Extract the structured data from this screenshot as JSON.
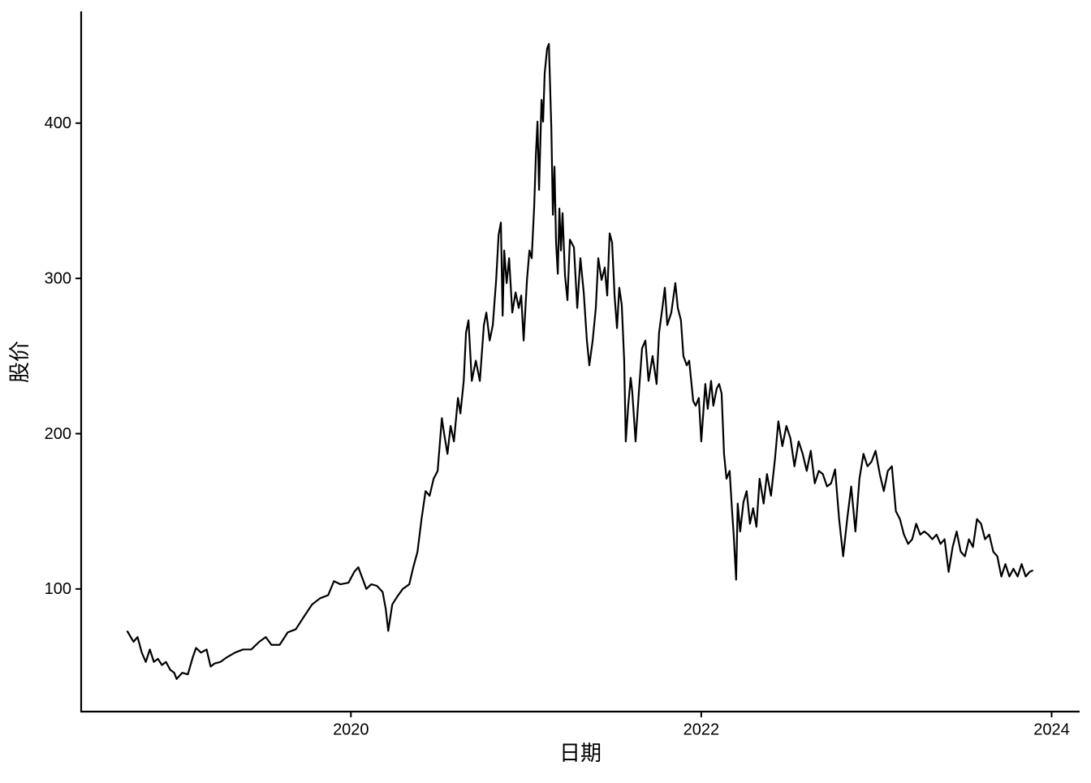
{
  "chart_data": {
    "type": "line",
    "x_label": "日期",
    "y_label": "股价",
    "xlim": [
      2018.46,
      2024.16
    ],
    "ylim": [
      21,
      472
    ],
    "xticks": [
      2020,
      2022,
      2024
    ],
    "yticks": [
      100,
      200,
      300,
      400
    ],
    "grid": false,
    "x": [
      2018.722,
      2018.759,
      2018.782,
      2018.806,
      2018.829,
      2018.852,
      2018.875,
      2018.898,
      2018.921,
      2018.944,
      2018.968,
      2018.991,
      2019.005,
      2019.037,
      2019.069,
      2019.097,
      2019.116,
      2019.144,
      2019.176,
      2019.199,
      2019.222,
      2019.255,
      2019.292,
      2019.338,
      2019.384,
      2019.431,
      2019.477,
      2019.514,
      2019.546,
      2019.593,
      2019.639,
      2019.685,
      2019.731,
      2019.778,
      2019.824,
      2019.87,
      2019.903,
      2019.94,
      2019.986,
      2020.019,
      2020.042,
      2020.065,
      2020.088,
      2020.116,
      2020.148,
      2020.181,
      2020.199,
      2020.213,
      2020.236,
      2020.264,
      2020.296,
      2020.333,
      2020.356,
      2020.38,
      2020.403,
      2020.426,
      2020.449,
      2020.472,
      2020.495,
      2020.519,
      2020.532,
      2020.551,
      2020.569,
      2020.588,
      2020.611,
      2020.625,
      2020.644,
      2020.657,
      2020.671,
      2020.69,
      2020.713,
      2020.736,
      2020.759,
      2020.773,
      2020.792,
      2020.81,
      2020.829,
      2020.843,
      2020.856,
      2020.866,
      2020.875,
      2020.889,
      2020.903,
      2020.921,
      2020.94,
      2020.958,
      2020.972,
      2020.986,
      2021.005,
      2021.019,
      2021.032,
      2021.046,
      2021.056,
      2021.065,
      2021.074,
      2021.088,
      2021.097,
      2021.106,
      2021.12,
      2021.13,
      2021.144,
      2021.153,
      2021.162,
      2021.171,
      2021.181,
      2021.19,
      2021.199,
      2021.208,
      2021.222,
      2021.236,
      2021.25,
      2021.273,
      2021.292,
      2021.31,
      2021.329,
      2021.347,
      2021.361,
      2021.38,
      2021.398,
      2021.412,
      2021.431,
      2021.449,
      2021.463,
      2021.477,
      2021.491,
      2021.505,
      2021.519,
      2021.532,
      2021.546,
      2021.56,
      2021.569,
      2021.583,
      2021.597,
      2021.606,
      2021.625,
      2021.644,
      2021.662,
      2021.681,
      2021.699,
      2021.722,
      2021.745,
      2021.759,
      2021.778,
      2021.792,
      2021.806,
      2021.829,
      2021.852,
      2021.866,
      2021.884,
      2021.898,
      2021.917,
      2021.931,
      2021.954,
      2021.968,
      2021.986,
      2022.0,
      2022.023,
      2022.037,
      2022.056,
      2022.069,
      2022.088,
      2022.102,
      2022.116,
      2022.13,
      2022.144,
      2022.162,
      2022.176,
      2022.185,
      2022.199,
      2022.208,
      2022.222,
      2022.241,
      2022.259,
      2022.278,
      2022.296,
      2022.315,
      2022.333,
      2022.356,
      2022.375,
      2022.398,
      2022.421,
      2022.44,
      2022.463,
      2022.486,
      2022.509,
      2022.532,
      2022.556,
      2022.579,
      2022.602,
      2022.625,
      2022.648,
      2022.671,
      2022.694,
      2022.718,
      2022.741,
      2022.764,
      2022.787,
      2022.81,
      2022.833,
      2022.856,
      2022.88,
      2022.903,
      2022.926,
      2022.949,
      2022.972,
      2022.995,
      2023.019,
      2023.042,
      2023.065,
      2023.088,
      2023.111,
      2023.134,
      2023.157,
      2023.181,
      2023.204,
      2023.227,
      2023.25,
      2023.273,
      2023.296,
      2023.319,
      2023.343,
      2023.366,
      2023.389,
      2023.412,
      2023.435,
      2023.458,
      2023.481,
      2023.505,
      2023.528,
      2023.551,
      2023.574,
      2023.597,
      2023.62,
      2023.644,
      2023.667,
      2023.69,
      2023.713,
      2023.736,
      2023.759,
      2023.782,
      2023.806,
      2023.829,
      2023.852,
      2023.875,
      2023.894
    ],
    "series": [
      {
        "color": "#000000",
        "values": [
          73,
          66,
          69,
          59,
          53,
          61,
          53,
          55,
          51,
          53,
          48,
          46,
          42,
          46,
          45,
          56,
          62,
          59,
          61,
          50,
          52,
          53,
          56,
          59,
          61,
          61,
          66,
          69,
          64,
          64,
          72,
          74,
          82,
          90,
          94,
          96,
          105,
          103,
          104,
          111,
          114,
          107,
          100,
          103,
          102,
          98,
          87,
          73,
          90,
          95,
          100,
          103,
          114,
          124,
          145,
          163,
          160,
          171,
          176,
          210,
          200,
          187,
          205,
          195,
          223,
          213,
          234,
          265,
          273,
          234,
          247,
          234,
          270,
          278,
          260,
          270,
          299,
          328,
          336,
          276,
          318,
          297,
          313,
          278,
          291,
          281,
          289,
          260,
          299,
          318,
          313,
          346,
          380,
          401,
          357,
          415,
          401,
          432,
          448,
          451,
          397,
          341,
          372,
          323,
          303,
          345,
          318,
          342,
          302,
          286,
          325,
          320,
          281,
          313,
          291,
          260,
          244,
          260,
          281,
          313,
          299,
          307,
          289,
          329,
          323,
          289,
          268,
          294,
          283,
          247,
          195,
          218,
          236,
          227,
          195,
          227,
          255,
          260,
          234,
          250,
          232,
          265,
          281,
          294,
          270,
          278,
          297,
          281,
          273,
          250,
          244,
          247,
          221,
          218,
          223,
          195,
          232,
          216,
          234,
          218,
          229,
          232,
          226,
          187,
          171,
          176,
          150,
          135,
          106,
          155,
          137,
          156,
          163,
          142,
          152,
          140,
          171,
          155,
          174,
          160,
          184,
          208,
          192,
          205,
          197,
          179,
          195,
          187,
          176,
          189,
          168,
          176,
          174,
          166,
          168,
          177,
          145,
          121,
          145,
          166,
          137,
          171,
          187,
          179,
          182,
          189,
          174,
          163,
          176,
          179,
          150,
          145,
          135,
          129,
          132,
          142,
          135,
          137,
          135,
          132,
          135,
          129,
          132,
          111,
          127,
          137,
          124,
          121,
          132,
          127,
          145,
          142,
          132,
          135,
          124,
          121,
          108,
          116,
          108,
          113,
          108,
          116,
          108,
          111,
          112
        ]
      }
    ]
  }
}
